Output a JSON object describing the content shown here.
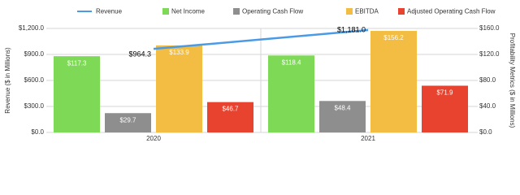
{
  "chart_data": {
    "type": "bar",
    "categories": [
      "2020",
      "2021"
    ],
    "y_label": "Revenue ($ in Millions)",
    "y2_label": "Profitability Metrics ($ in Millions)",
    "ylim": [
      0,
      1200
    ],
    "yticks": [
      {
        "value": 0,
        "label": "$0.0"
      },
      {
        "value": 300,
        "label": "$300.0"
      },
      {
        "value": 600,
        "label": "$600.0"
      },
      {
        "value": 900,
        "label": "$900.0"
      },
      {
        "value": 1200,
        "label": "$1,200.0"
      }
    ],
    "y2lim": [
      0,
      160
    ],
    "y2ticks": [
      {
        "value": 0,
        "label": "$0.0"
      },
      {
        "value": 40,
        "label": "$40.0"
      },
      {
        "value": 80,
        "label": "$80.0"
      },
      {
        "value": 120,
        "label": "$120.0"
      },
      {
        "value": 160,
        "label": "$160.0"
      }
    ],
    "grid": true,
    "legend": "top",
    "series": [
      {
        "name": "Revenue",
        "type": "line",
        "color": "#4a9ae6",
        "values": [
          964.3,
          1181.0
        ],
        "value_labels": [
          "$964.3",
          "$1,181.0"
        ]
      },
      {
        "name": "Net Income",
        "color": "#7ed957",
        "axis": "y2",
        "values": [
          117.3,
          118.4
        ],
        "value_labels": [
          "$117.3",
          "$118.4"
        ]
      },
      {
        "name": "Operating Cash Flow",
        "color": "#8e8e8e",
        "axis": "y2",
        "values": [
          29.7,
          48.4
        ],
        "value_labels": [
          "$29.7",
          "$48.4"
        ]
      },
      {
        "name": "EBITDA",
        "color": "#f2bd42",
        "axis": "y2",
        "values": [
          133.9,
          156.2
        ],
        "value_labels": [
          "$133.9",
          "$156.2"
        ]
      },
      {
        "name": "Adjusted Operating Cash Flow",
        "color": "#e8432e",
        "axis": "y2",
        "values": [
          46.7,
          71.9
        ],
        "value_labels": [
          "$46.7",
          "$71.9"
        ]
      }
    ]
  }
}
